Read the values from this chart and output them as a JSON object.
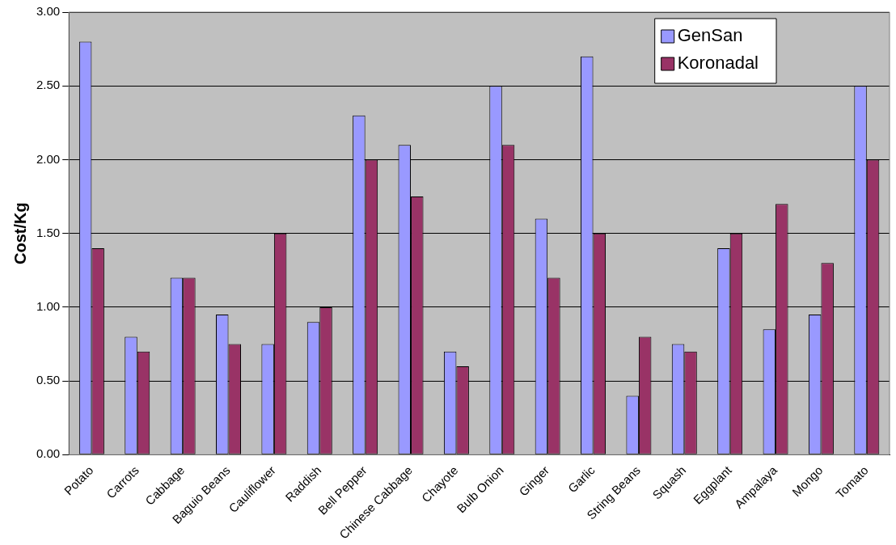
{
  "chart_data": {
    "type": "bar",
    "ylabel": "Cost/Kg",
    "categories": [
      "Potato",
      "Carrots",
      "Cabbage",
      "Baguio Beans",
      "Cauliflower",
      "Raddish",
      "Bell Pepper",
      "Chinese Cabbage",
      "Chayote",
      "Bulb Onion",
      "Ginger",
      "Garlic",
      "String Beans",
      "Squash",
      "Eggplant",
      "Ampalaya",
      "Mongo",
      "Tomato"
    ],
    "series": [
      {
        "name": "GenSan",
        "color": "#9999ff",
        "values": [
          2.8,
          0.8,
          1.2,
          0.95,
          0.75,
          0.9,
          2.3,
          2.1,
          0.7,
          2.5,
          1.6,
          2.7,
          0.4,
          0.75,
          1.4,
          0.85,
          0.95,
          2.5
        ]
      },
      {
        "name": "Koronadal",
        "color": "#993366",
        "values": [
          1.4,
          0.7,
          1.2,
          0.75,
          1.5,
          1.0,
          2.0,
          1.75,
          0.6,
          2.1,
          1.2,
          1.5,
          0.8,
          0.7,
          1.5,
          1.7,
          1.3,
          2.0
        ]
      }
    ],
    "ylim": [
      0,
      3
    ],
    "yticks": [
      {
        "value": 0,
        "label": "0.00"
      },
      {
        "value": 0.5,
        "label": "0.50"
      },
      {
        "value": 1,
        "label": "1.00"
      },
      {
        "value": 1.5,
        "label": "1.50"
      },
      {
        "value": 2,
        "label": "2.00"
      },
      {
        "value": 2.5,
        "label": "2.50"
      },
      {
        "value": 3,
        "label": "3.00"
      }
    ],
    "grid": "y",
    "legend": "top right"
  }
}
